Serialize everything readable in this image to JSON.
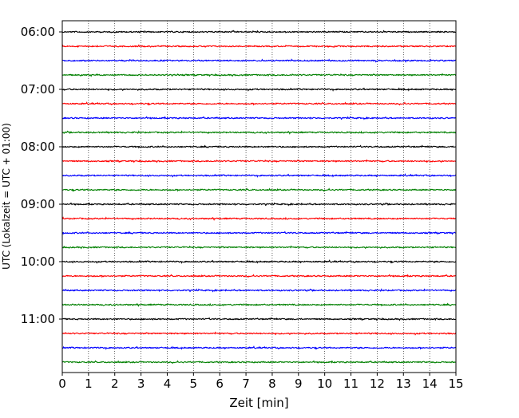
{
  "chart_data": {
    "type": "line",
    "title": "",
    "xlabel": "Zeit  [min]",
    "ylabel": "UTC (Lokalzeit = UTC + 01:00)",
    "xlim": [
      0,
      15
    ],
    "x_ticks": [
      "0",
      "1",
      "2",
      "3",
      "4",
      "5",
      "6",
      "7",
      "8",
      "9",
      "10",
      "11",
      "12",
      "13",
      "14",
      "15"
    ],
    "y_ticks": [
      "06:00",
      "07:00",
      "08:00",
      "09:00",
      "10:00",
      "11:00"
    ],
    "y_tick_row_index": [
      0,
      4,
      8,
      12,
      16,
      20
    ],
    "trace_interval_minutes": 15,
    "first_trace": "06:00",
    "last_trace": "11:45",
    "trace_count": 24,
    "trace_color_cycle": [
      "#000000",
      "#ff0000",
      "#0000ff",
      "#008000"
    ],
    "vertical_grid": "dotted, at every minute",
    "legend": "none"
  }
}
